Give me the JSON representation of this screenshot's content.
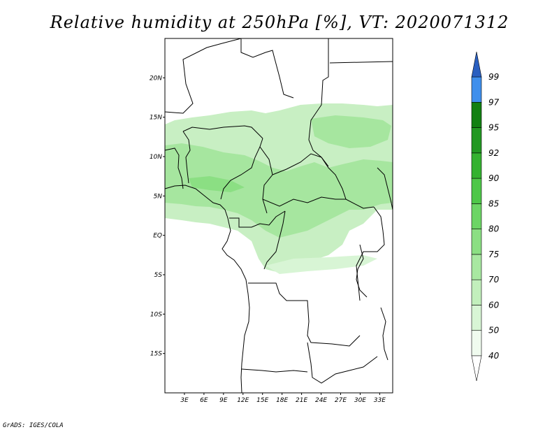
{
  "title": "Relative humidity at 250hPa [%], VT: 2020071312",
  "credit": "GrADS: IGES/COLA",
  "map": {
    "lat_labels": [
      "20N",
      "15N",
      "10N",
      "5N",
      "EQ",
      "5S",
      "10S",
      "15S"
    ],
    "lon_labels": [
      "3E",
      "6E",
      "9E",
      "12E",
      "15E",
      "18E",
      "21E",
      "24E",
      "27E",
      "30E",
      "33E"
    ],
    "lat_values": [
      20,
      15,
      10,
      5,
      0,
      -5,
      -10,
      -15
    ],
    "lon_values": [
      3,
      6,
      9,
      12,
      15,
      18,
      21,
      24,
      27,
      30,
      33
    ],
    "lon_range": [
      0,
      35
    ],
    "lat_range": [
      -20,
      25
    ]
  },
  "colorbar": {
    "labels": [
      "40",
      "50",
      "60",
      "70",
      "75",
      "80",
      "85",
      "90",
      "92",
      "95",
      "97",
      "99"
    ],
    "colors": [
      "#f0fbef",
      "#d8f5d5",
      "#c2efbc",
      "#a8e8a1",
      "#8bdf83",
      "#6cd565",
      "#4ec748",
      "#34b230",
      "#229822",
      "#128012",
      "#3f8fec",
      "#1f6fd6",
      "#2a5fc0"
    ]
  }
}
